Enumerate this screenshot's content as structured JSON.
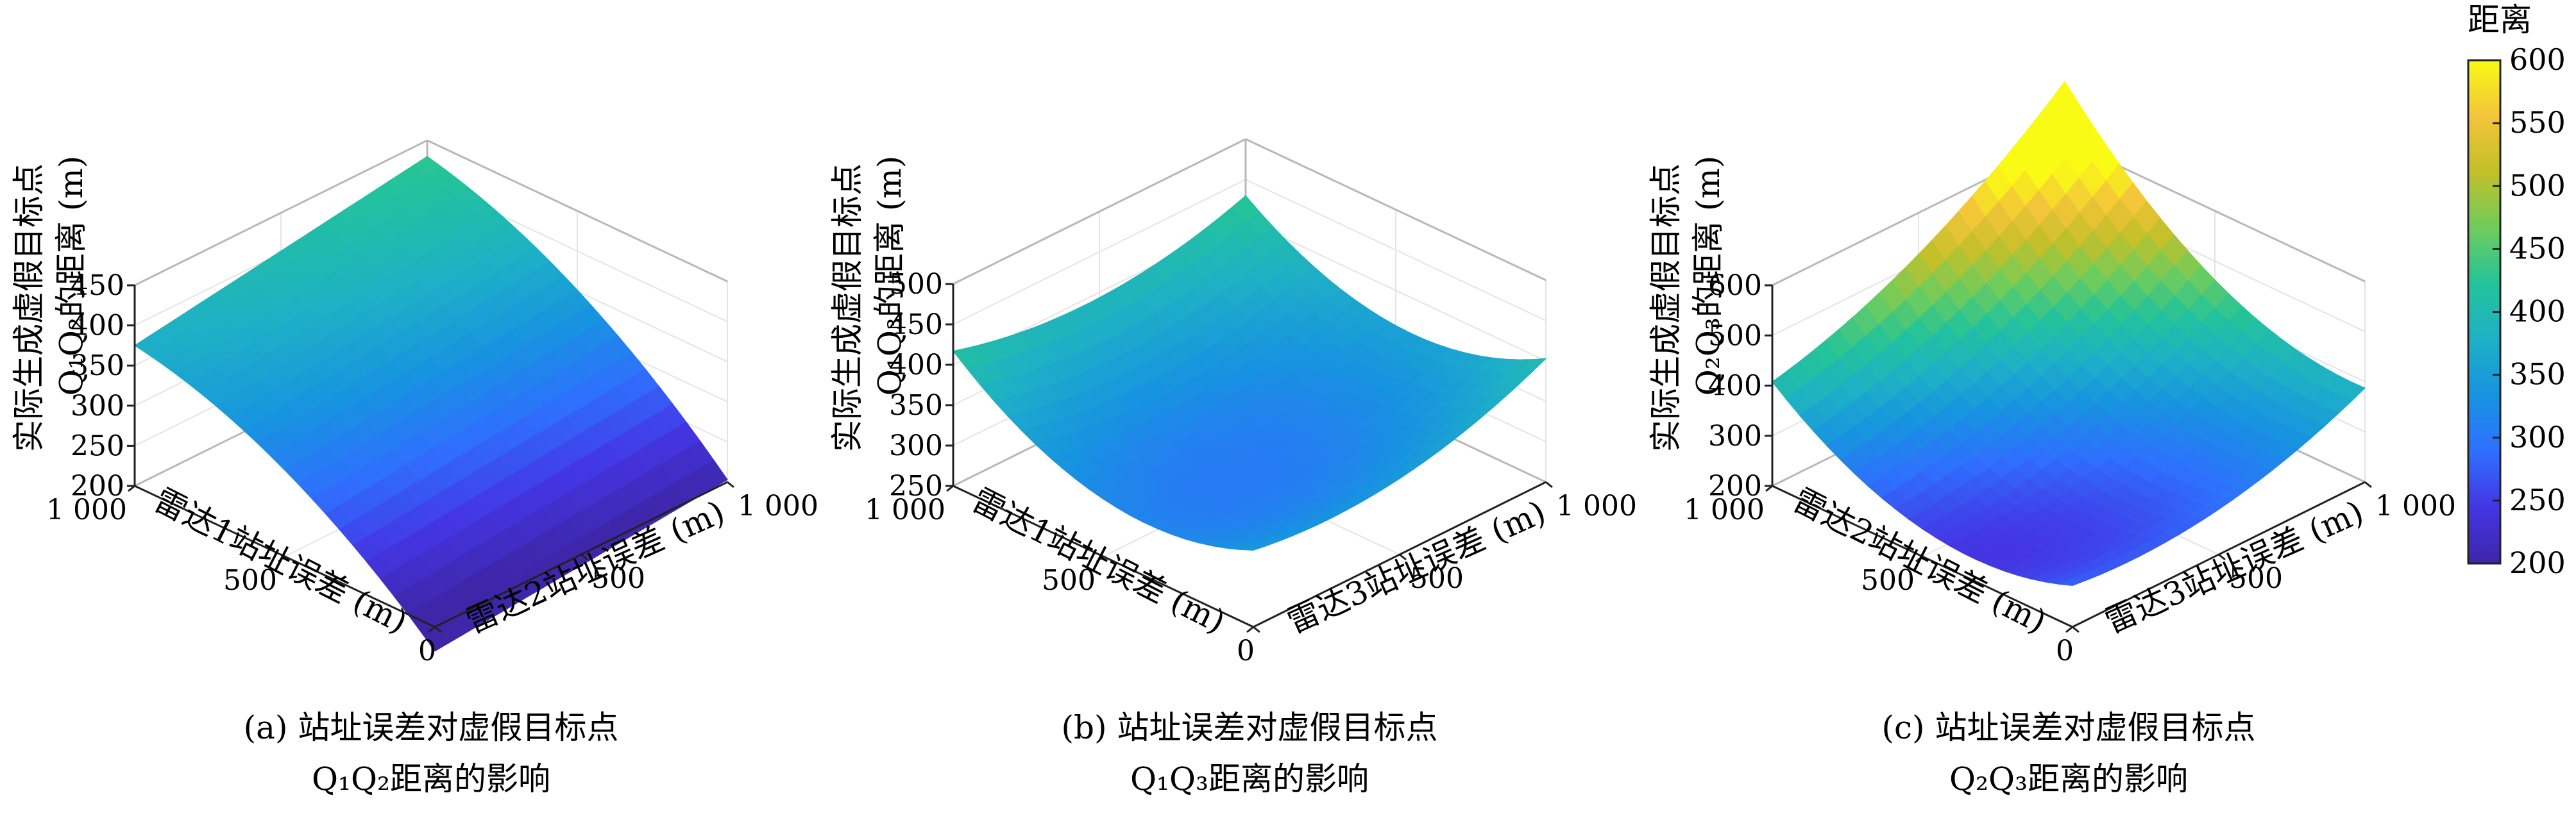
{
  "chart_data": [
    {
      "type": "surface",
      "subplot": "a",
      "caption_line1": "(a) 站址误差对虚假目标点",
      "caption_line2": "Q₁Q₂距离的影响",
      "xlabel": "雷达1站址误差 (m)",
      "ylabel": "雷达2站址误差 (m)",
      "zlabel_line1": "实际生成虚假目标点",
      "zlabel_line2": "Q₁Q₂的距离 (m)",
      "xlim": [
        0,
        1000
      ],
      "ylim": [
        0,
        1000
      ],
      "zlim": [
        200,
        450
      ],
      "xticks": [
        {
          "v": 0,
          "label": "0"
        },
        {
          "v": 500,
          "label": "500"
        },
        {
          "v": 1000,
          "label": "1 000"
        }
      ],
      "yticks": [
        {
          "v": 0,
          "label": ""
        },
        {
          "v": 500,
          "label": "500"
        },
        {
          "v": 1000,
          "label": "1 000"
        }
      ],
      "zticks": [
        {
          "v": 200,
          "label": "200"
        },
        {
          "v": 250,
          "label": "250"
        },
        {
          "v": 300,
          "label": "300"
        },
        {
          "v": 350,
          "label": "350"
        },
        {
          "v": 400,
          "label": "400"
        },
        {
          "v": 450,
          "label": "450"
        }
      ],
      "corner_values": {
        "x0_y0": 205,
        "x1000_y0": 410,
        "x0_y1000": 238,
        "x1000_y1000": 465
      },
      "curvature": -35
    },
    {
      "type": "surface",
      "subplot": "b",
      "caption_line1": "(b) 站址误差对虚假目标点",
      "caption_line2": "Q₁Q₃距离的影响",
      "xlabel": "雷达1站址误差 (m)",
      "ylabel": "雷达3站址误差 (m)",
      "zlabel_line1": "实际生成虚假目标点",
      "zlabel_line2": "Q₁Q₃的距离 (m)",
      "xlim": [
        0,
        1000
      ],
      "ylim": [
        0,
        1000
      ],
      "zlim": [
        250,
        500
      ],
      "xticks": [
        {
          "v": 0,
          "label": "0"
        },
        {
          "v": 500,
          "label": "500"
        },
        {
          "v": 1000,
          "label": "1 000"
        }
      ],
      "yticks": [
        {
          "v": 0,
          "label": ""
        },
        {
          "v": 500,
          "label": "500"
        },
        {
          "v": 1000,
          "label": "1 000"
        }
      ],
      "zticks": [
        {
          "v": 250,
          "label": "250"
        },
        {
          "v": 300,
          "label": "300"
        },
        {
          "v": 350,
          "label": "350"
        },
        {
          "v": 400,
          "label": "400"
        },
        {
          "v": 450,
          "label": "450"
        },
        {
          "v": 500,
          "label": "500"
        }
      ],
      "corner_values": {
        "x0_y0": 300,
        "x1000_y0": 372,
        "x0_y1000": 358,
        "x1000_y1000": 385
      },
      "curvature": 60
    },
    {
      "type": "surface",
      "subplot": "c",
      "caption_line1": "(c) 站址误差对虚假目标点",
      "caption_line2": "Q₂Q₃距离的影响",
      "xlabel": "雷达2站址误差 (m)",
      "ylabel": "雷达3站址误差 (m)",
      "zlabel_line1": "实际生成虚假目标点",
      "zlabel_line2": "Q₂Q₃的距离 (m)",
      "xlim": [
        0,
        1000
      ],
      "ylim": [
        0,
        1000
      ],
      "zlim": [
        200,
        600
      ],
      "xticks": [
        {
          "v": 0,
          "label": "0"
        },
        {
          "v": 500,
          "label": "500"
        },
        {
          "v": 1000,
          "label": "1 000"
        }
      ],
      "yticks": [
        {
          "v": 0,
          "label": ""
        },
        {
          "v": 500,
          "label": "500"
        },
        {
          "v": 1000,
          "label": "1 000"
        }
      ],
      "zticks": [
        {
          "v": 200,
          "label": "200"
        },
        {
          "v": 300,
          "label": "300"
        },
        {
          "v": 400,
          "label": "400"
        },
        {
          "v": 500,
          "label": "500"
        },
        {
          "v": 600,
          "label": "600"
        }
      ],
      "corner_values": {
        "x0_y0": 215,
        "x1000_y0": 340,
        "x0_y1000": 320,
        "x1000_y1000": 650
      },
      "curvature": 90
    }
  ],
  "colorbar": {
    "title": "距离",
    "colormap": "parula",
    "range": [
      200,
      600
    ],
    "ticks": [
      "200",
      "250",
      "300",
      "350",
      "400",
      "450",
      "500",
      "550",
      "600"
    ],
    "colors": [
      "#3e26a8",
      "#4435e3",
      "#2f6ffe",
      "#1793e0",
      "#1eb0c6",
      "#23c39a",
      "#6fcc5c",
      "#c2c029",
      "#f4c43a",
      "#f9fb15"
    ]
  }
}
